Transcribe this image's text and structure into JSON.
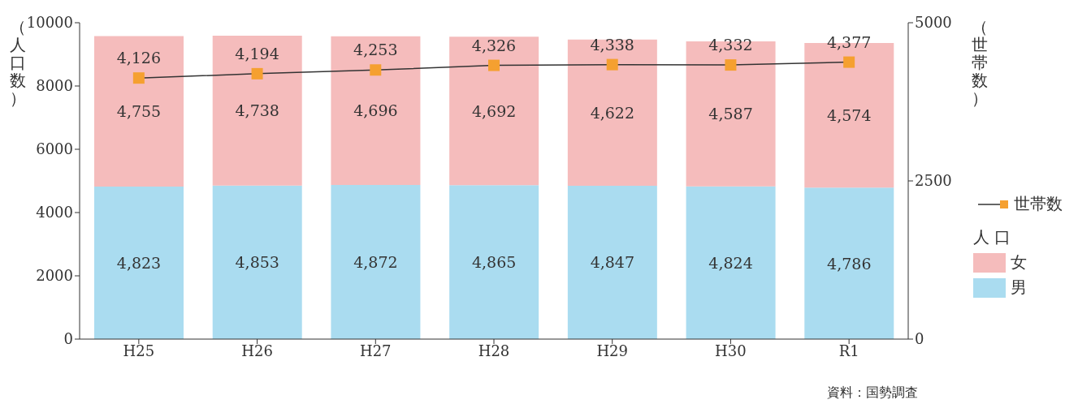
{
  "chart_data": {
    "type": "bar",
    "stacked": true,
    "ylabel": "（人口数）",
    "y2label": "（世帯数）",
    "legend_title": "人 口",
    "legend": "right",
    "marker": "square",
    "grid": false,
    "categories": [
      "H25",
      "H26",
      "H27",
      "H28",
      "H29",
      "H30",
      "R1"
    ],
    "series": [
      {
        "name": "男",
        "color": "#aadcf0",
        "values": [
          4823,
          4853,
          4872,
          4865,
          4847,
          4824,
          4786
        ],
        "value_labels": [
          "4,823",
          "4,853",
          "4,872",
          "4,865",
          "4,847",
          "4,824",
          "4,786"
        ]
      },
      {
        "name": "女",
        "color": "#f5bcbc",
        "values": [
          4755,
          4738,
          4696,
          4692,
          4622,
          4587,
          4574
        ],
        "value_labels": [
          "4,755",
          "4,738",
          "4,696",
          "4,692",
          "4,622",
          "4,587",
          "4,574"
        ]
      },
      {
        "name": "世帯数",
        "type": "line",
        "axis": "y2",
        "color": "#f5a030",
        "values": [
          4126,
          4194,
          4253,
          4326,
          4338,
          4332,
          4377
        ],
        "value_labels": [
          "4,126",
          "4,194",
          "4,253",
          "4,326",
          "4,338",
          "4,332",
          "4,377"
        ]
      }
    ],
    "ylim": [
      0,
      10000
    ],
    "yticks": [
      0,
      2000,
      4000,
      6000,
      8000,
      10000
    ],
    "y2lim": [
      0,
      5000
    ],
    "y2ticks": [
      0,
      2500,
      5000
    ],
    "annotations": [
      "資料：国勢調査"
    ]
  }
}
